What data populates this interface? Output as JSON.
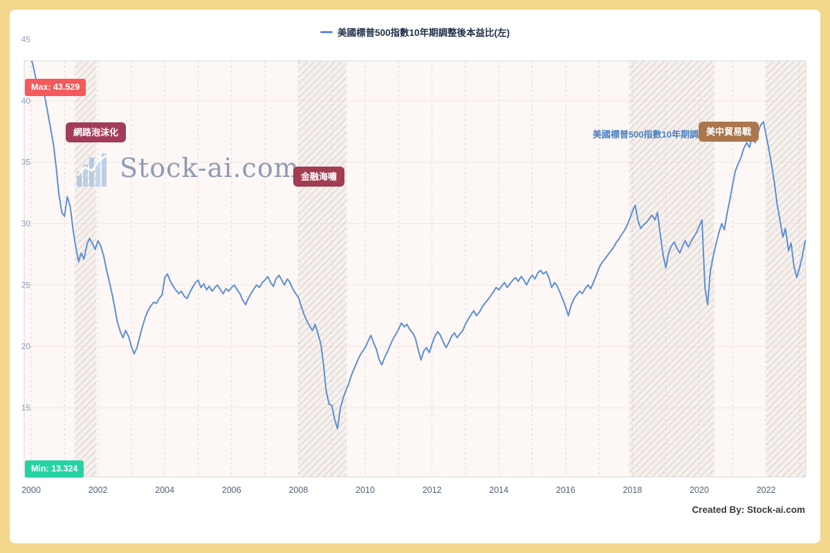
{
  "chart_data": {
    "type": "line",
    "title": "美國標普500指數10年期調整後本益比(左)",
    "series_label_shown": "美國標普500指數10年期調",
    "x_ticks": [
      2000,
      2002,
      2004,
      2006,
      2008,
      2010,
      2012,
      2014,
      2016,
      2018,
      2020,
      2022
    ],
    "y_ticks": [
      15,
      20,
      25,
      30,
      35,
      40,
      45
    ],
    "x_range": [
      2000,
      2023.2
    ],
    "y_range": [
      9.4,
      45.5
    ],
    "grid": "dashed-vertical-yearly",
    "legend_position": "top-center",
    "line_color": "#5b8ed6",
    "max": {
      "label": "Max: 43.529",
      "value": 43.529
    },
    "min": {
      "label": "Min: 13.324",
      "value": 13.324
    },
    "event_bands": [
      {
        "label": "網路泡沫化",
        "from": 2001.3,
        "to": 2001.95
      },
      {
        "label": "金融海嘯",
        "from": 2008.0,
        "to": 2009.45
      },
      {
        "label": "美中貿易戰",
        "from": 2017.9,
        "to": 2020.45
      },
      {
        "label": "",
        "from": 2022.0,
        "to": 2023.2
      }
    ],
    "series": [
      {
        "name": "美國標普500指數10年期調整後本益比(左)",
        "color": "#5b8ed6",
        "points": [
          [
            2000.0,
            43.5
          ],
          [
            2000.08,
            42.6
          ],
          [
            2000.17,
            41.4
          ],
          [
            2000.25,
            40.9
          ],
          [
            2000.33,
            41.3
          ],
          [
            2000.42,
            40.2
          ],
          [
            2000.5,
            39.0
          ],
          [
            2000.58,
            37.8
          ],
          [
            2000.67,
            36.4
          ],
          [
            2000.75,
            34.6
          ],
          [
            2000.83,
            32.4
          ],
          [
            2000.92,
            30.9
          ],
          [
            2001.0,
            30.6
          ],
          [
            2001.08,
            32.2
          ],
          [
            2001.17,
            31.4
          ],
          [
            2001.25,
            29.6
          ],
          [
            2001.33,
            28.2
          ],
          [
            2001.42,
            26.9
          ],
          [
            2001.5,
            27.6
          ],
          [
            2001.58,
            27.1
          ],
          [
            2001.67,
            28.3
          ],
          [
            2001.75,
            28.8
          ],
          [
            2001.83,
            28.4
          ],
          [
            2001.92,
            27.9
          ],
          [
            2002.0,
            28.6
          ],
          [
            2002.08,
            28.2
          ],
          [
            2002.17,
            27.4
          ],
          [
            2002.25,
            26.3
          ],
          [
            2002.33,
            25.4
          ],
          [
            2002.42,
            24.3
          ],
          [
            2002.5,
            23.2
          ],
          [
            2002.58,
            22.0
          ],
          [
            2002.67,
            21.2
          ],
          [
            2002.75,
            20.7
          ],
          [
            2002.83,
            21.3
          ],
          [
            2002.92,
            20.8
          ],
          [
            2003.0,
            20.0
          ],
          [
            2003.08,
            19.4
          ],
          [
            2003.17,
            19.9
          ],
          [
            2003.25,
            20.8
          ],
          [
            2003.33,
            21.6
          ],
          [
            2003.42,
            22.4
          ],
          [
            2003.5,
            22.9
          ],
          [
            2003.58,
            23.3
          ],
          [
            2003.67,
            23.6
          ],
          [
            2003.75,
            23.5
          ],
          [
            2003.83,
            23.9
          ],
          [
            2003.92,
            24.2
          ],
          [
            2004.0,
            25.6
          ],
          [
            2004.08,
            25.9
          ],
          [
            2004.17,
            25.3
          ],
          [
            2004.25,
            24.9
          ],
          [
            2004.33,
            24.6
          ],
          [
            2004.42,
            24.3
          ],
          [
            2004.5,
            24.5
          ],
          [
            2004.58,
            24.1
          ],
          [
            2004.67,
            23.9
          ],
          [
            2004.75,
            24.4
          ],
          [
            2004.83,
            24.8
          ],
          [
            2004.92,
            25.2
          ],
          [
            2005.0,
            25.4
          ],
          [
            2005.08,
            24.8
          ],
          [
            2005.17,
            25.1
          ],
          [
            2005.25,
            24.6
          ],
          [
            2005.33,
            24.9
          ],
          [
            2005.42,
            24.5
          ],
          [
            2005.5,
            24.8
          ],
          [
            2005.58,
            25.0
          ],
          [
            2005.67,
            24.6
          ],
          [
            2005.75,
            24.3
          ],
          [
            2005.83,
            24.7
          ],
          [
            2005.92,
            24.5
          ],
          [
            2006.0,
            24.8
          ],
          [
            2006.08,
            25.0
          ],
          [
            2006.17,
            24.6
          ],
          [
            2006.25,
            24.3
          ],
          [
            2006.33,
            23.8
          ],
          [
            2006.42,
            23.4
          ],
          [
            2006.5,
            23.9
          ],
          [
            2006.58,
            24.3
          ],
          [
            2006.67,
            24.7
          ],
          [
            2006.75,
            25.0
          ],
          [
            2006.83,
            24.8
          ],
          [
            2006.92,
            25.2
          ],
          [
            2007.0,
            25.4
          ],
          [
            2007.08,
            25.7
          ],
          [
            2007.17,
            25.2
          ],
          [
            2007.25,
            24.9
          ],
          [
            2007.33,
            25.5
          ],
          [
            2007.42,
            25.8
          ],
          [
            2007.5,
            25.4
          ],
          [
            2007.58,
            25.0
          ],
          [
            2007.67,
            25.5
          ],
          [
            2007.75,
            25.2
          ],
          [
            2007.83,
            24.7
          ],
          [
            2007.92,
            24.3
          ],
          [
            2008.0,
            24.0
          ],
          [
            2008.08,
            23.3
          ],
          [
            2008.17,
            22.6
          ],
          [
            2008.25,
            22.1
          ],
          [
            2008.33,
            21.7
          ],
          [
            2008.42,
            21.3
          ],
          [
            2008.5,
            21.8
          ],
          [
            2008.58,
            21.1
          ],
          [
            2008.67,
            20.2
          ],
          [
            2008.75,
            18.6
          ],
          [
            2008.83,
            16.4
          ],
          [
            2008.92,
            15.3
          ],
          [
            2009.0,
            15.2
          ],
          [
            2009.08,
            14.1
          ],
          [
            2009.17,
            13.3
          ],
          [
            2009.25,
            14.9
          ],
          [
            2009.33,
            15.7
          ],
          [
            2009.42,
            16.4
          ],
          [
            2009.5,
            16.9
          ],
          [
            2009.58,
            17.6
          ],
          [
            2009.67,
            18.2
          ],
          [
            2009.75,
            18.7
          ],
          [
            2009.83,
            19.2
          ],
          [
            2009.92,
            19.6
          ],
          [
            2010.0,
            19.9
          ],
          [
            2010.08,
            20.4
          ],
          [
            2010.17,
            20.9
          ],
          [
            2010.25,
            20.3
          ],
          [
            2010.33,
            19.8
          ],
          [
            2010.42,
            18.9
          ],
          [
            2010.5,
            18.5
          ],
          [
            2010.58,
            19.1
          ],
          [
            2010.67,
            19.6
          ],
          [
            2010.75,
            20.1
          ],
          [
            2010.83,
            20.6
          ],
          [
            2010.92,
            21.0
          ],
          [
            2011.0,
            21.4
          ],
          [
            2011.08,
            21.9
          ],
          [
            2011.17,
            21.6
          ],
          [
            2011.25,
            21.8
          ],
          [
            2011.33,
            21.4
          ],
          [
            2011.42,
            21.1
          ],
          [
            2011.5,
            20.7
          ],
          [
            2011.58,
            19.8
          ],
          [
            2011.67,
            18.9
          ],
          [
            2011.75,
            19.6
          ],
          [
            2011.83,
            19.9
          ],
          [
            2011.92,
            19.5
          ],
          [
            2012.0,
            20.2
          ],
          [
            2012.08,
            20.8
          ],
          [
            2012.17,
            21.2
          ],
          [
            2012.25,
            20.9
          ],
          [
            2012.33,
            20.4
          ],
          [
            2012.42,
            19.9
          ],
          [
            2012.5,
            20.3
          ],
          [
            2012.58,
            20.8
          ],
          [
            2012.67,
            21.1
          ],
          [
            2012.75,
            20.7
          ],
          [
            2012.83,
            21.0
          ],
          [
            2012.92,
            21.3
          ],
          [
            2013.0,
            21.8
          ],
          [
            2013.08,
            22.2
          ],
          [
            2013.17,
            22.6
          ],
          [
            2013.25,
            22.9
          ],
          [
            2013.33,
            22.5
          ],
          [
            2013.42,
            22.8
          ],
          [
            2013.5,
            23.2
          ],
          [
            2013.58,
            23.5
          ],
          [
            2013.67,
            23.8
          ],
          [
            2013.75,
            24.1
          ],
          [
            2013.83,
            24.4
          ],
          [
            2013.92,
            24.8
          ],
          [
            2014.0,
            24.6
          ],
          [
            2014.08,
            24.9
          ],
          [
            2014.17,
            25.2
          ],
          [
            2014.25,
            24.8
          ],
          [
            2014.33,
            25.1
          ],
          [
            2014.42,
            25.4
          ],
          [
            2014.5,
            25.6
          ],
          [
            2014.58,
            25.3
          ],
          [
            2014.67,
            25.7
          ],
          [
            2014.75,
            25.4
          ],
          [
            2014.83,
            25.0
          ],
          [
            2014.92,
            25.5
          ],
          [
            2015.0,
            25.8
          ],
          [
            2015.08,
            25.5
          ],
          [
            2015.17,
            26.0
          ],
          [
            2015.25,
            26.2
          ],
          [
            2015.33,
            25.9
          ],
          [
            2015.42,
            26.1
          ],
          [
            2015.5,
            25.6
          ],
          [
            2015.58,
            24.8
          ],
          [
            2015.67,
            25.2
          ],
          [
            2015.75,
            24.9
          ],
          [
            2015.83,
            24.4
          ],
          [
            2015.92,
            23.8
          ],
          [
            2016.0,
            23.2
          ],
          [
            2016.08,
            22.5
          ],
          [
            2016.17,
            23.4
          ],
          [
            2016.25,
            23.9
          ],
          [
            2016.33,
            24.2
          ],
          [
            2016.42,
            24.5
          ],
          [
            2016.5,
            24.3
          ],
          [
            2016.58,
            24.7
          ],
          [
            2016.67,
            25.0
          ],
          [
            2016.75,
            24.7
          ],
          [
            2016.83,
            25.2
          ],
          [
            2016.92,
            25.8
          ],
          [
            2017.0,
            26.4
          ],
          [
            2017.08,
            26.8
          ],
          [
            2017.17,
            27.1
          ],
          [
            2017.25,
            27.4
          ],
          [
            2017.33,
            27.7
          ],
          [
            2017.42,
            28.0
          ],
          [
            2017.5,
            28.4
          ],
          [
            2017.58,
            28.7
          ],
          [
            2017.67,
            29.1
          ],
          [
            2017.75,
            29.4
          ],
          [
            2017.83,
            29.8
          ],
          [
            2017.92,
            30.4
          ],
          [
            2018.0,
            31.0
          ],
          [
            2018.08,
            31.5
          ],
          [
            2018.17,
            30.2
          ],
          [
            2018.25,
            29.6
          ],
          [
            2018.33,
            29.9
          ],
          [
            2018.42,
            30.1
          ],
          [
            2018.5,
            30.4
          ],
          [
            2018.58,
            30.7
          ],
          [
            2018.67,
            30.3
          ],
          [
            2018.75,
            30.9
          ],
          [
            2018.83,
            29.2
          ],
          [
            2018.92,
            27.4
          ],
          [
            2019.0,
            26.4
          ],
          [
            2019.08,
            27.6
          ],
          [
            2019.17,
            28.2
          ],
          [
            2019.25,
            28.5
          ],
          [
            2019.33,
            28.0
          ],
          [
            2019.42,
            27.6
          ],
          [
            2019.5,
            28.2
          ],
          [
            2019.58,
            28.6
          ],
          [
            2019.67,
            28.1
          ],
          [
            2019.75,
            28.5
          ],
          [
            2019.83,
            28.9
          ],
          [
            2019.92,
            29.3
          ],
          [
            2020.0,
            29.8
          ],
          [
            2020.08,
            30.3
          ],
          [
            2020.17,
            24.8
          ],
          [
            2020.25,
            23.4
          ],
          [
            2020.33,
            26.1
          ],
          [
            2020.42,
            27.4
          ],
          [
            2020.5,
            28.3
          ],
          [
            2020.58,
            29.2
          ],
          [
            2020.67,
            30.0
          ],
          [
            2020.75,
            29.5
          ],
          [
            2020.83,
            30.8
          ],
          [
            2020.92,
            32.0
          ],
          [
            2021.0,
            33.2
          ],
          [
            2021.08,
            34.3
          ],
          [
            2021.17,
            34.9
          ],
          [
            2021.25,
            35.4
          ],
          [
            2021.33,
            36.1
          ],
          [
            2021.42,
            36.6
          ],
          [
            2021.5,
            36.2
          ],
          [
            2021.58,
            37.0
          ],
          [
            2021.67,
            36.6
          ],
          [
            2021.75,
            37.3
          ],
          [
            2021.83,
            38.0
          ],
          [
            2021.92,
            38.3
          ],
          [
            2022.0,
            37.2
          ],
          [
            2022.08,
            36.1
          ],
          [
            2022.17,
            34.7
          ],
          [
            2022.25,
            33.3
          ],
          [
            2022.33,
            31.6
          ],
          [
            2022.42,
            30.2
          ],
          [
            2022.5,
            28.9
          ],
          [
            2022.58,
            29.6
          ],
          [
            2022.67,
            27.8
          ],
          [
            2022.75,
            28.4
          ],
          [
            2022.83,
            26.6
          ],
          [
            2022.92,
            25.6
          ],
          [
            2023.0,
            26.4
          ],
          [
            2023.08,
            27.3
          ],
          [
            2023.17,
            28.6
          ]
        ]
      }
    ]
  },
  "watermark": {
    "text": "Stock-ai.com"
  },
  "footer": {
    "credit": "Created By: Stock-ai.com"
  }
}
